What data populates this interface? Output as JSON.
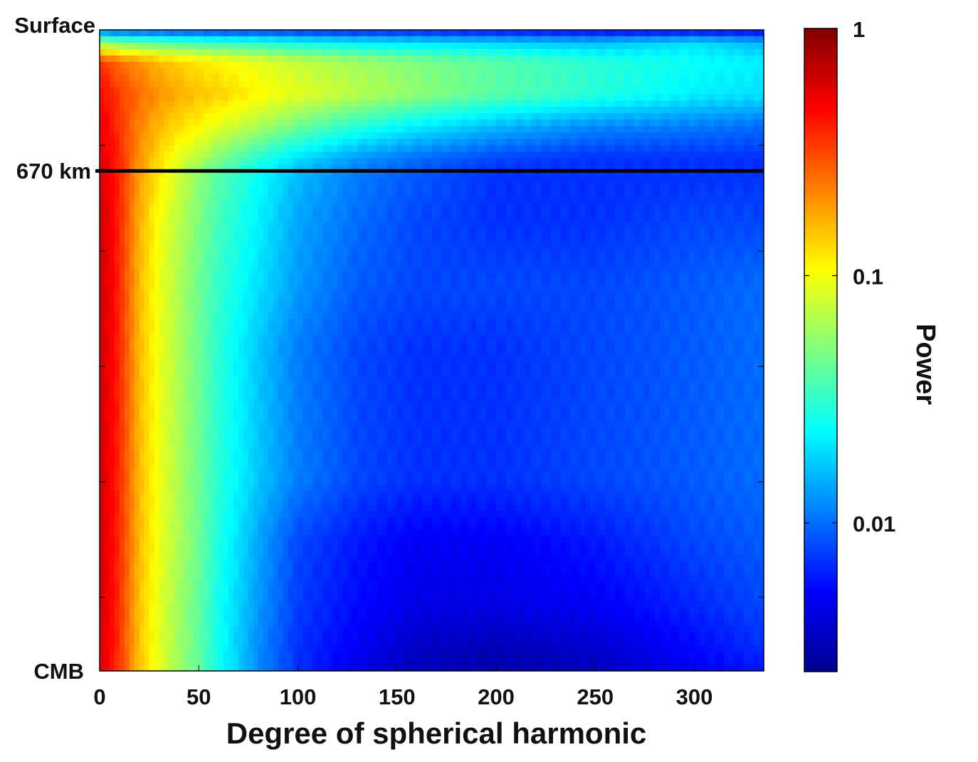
{
  "chart_data": {
    "type": "heatmap",
    "xlabel": "Degree of spherical harmonic",
    "x_ticks": [
      0,
      50,
      100,
      150,
      200,
      250,
      300
    ],
    "xlim": [
      0,
      335
    ],
    "y_labels": {
      "top": "Surface",
      "marker": "670 km",
      "bottom": "CMB"
    },
    "marker_line": {
      "label": "670 km",
      "depth_fraction_from_surface": 0.22
    },
    "colorbar": {
      "label": "Power",
      "scale": "log",
      "ticks": [
        {
          "value": 1,
          "label": "1"
        },
        {
          "value": 0.1,
          "label": "0.1"
        },
        {
          "value": 0.01,
          "label": "0.01"
        }
      ],
      "range": [
        0.0025,
        1
      ],
      "colormap": "jet"
    },
    "grid": false,
    "legend": "none",
    "depth_fractions": [
      0.0,
      0.02,
      0.05,
      0.1,
      0.15,
      0.2,
      0.22,
      0.3,
      0.4,
      0.5,
      0.6,
      0.7,
      0.8,
      0.9,
      0.96,
      1.0
    ],
    "degree_samples": [
      0,
      5,
      10,
      20,
      30,
      40,
      50,
      60,
      80,
      100,
      130,
      160,
      200,
      250,
      300,
      335
    ],
    "power": [
      [
        0.01,
        0.0085,
        0.0085,
        0.008,
        0.008,
        0.0075,
        0.0075,
        0.007,
        0.007,
        0.0065,
        0.006,
        0.006,
        0.0055,
        0.005,
        0.005,
        0.005
      ],
      [
        0.06,
        0.055,
        0.05,
        0.045,
        0.04,
        0.038,
        0.035,
        0.033,
        0.03,
        0.025,
        0.022,
        0.02,
        0.018,
        0.016,
        0.02,
        0.015
      ],
      [
        0.35,
        0.3,
        0.25,
        0.2,
        0.16,
        0.14,
        0.12,
        0.11,
        0.09,
        0.075,
        0.06,
        0.05,
        0.04,
        0.03,
        0.025,
        0.022
      ],
      [
        0.45,
        0.4,
        0.33,
        0.25,
        0.2,
        0.17,
        0.15,
        0.14,
        0.11,
        0.09,
        0.07,
        0.055,
        0.04,
        0.03,
        0.022,
        0.02
      ],
      [
        0.5,
        0.45,
        0.35,
        0.22,
        0.16,
        0.13,
        0.11,
        0.09,
        0.065,
        0.045,
        0.03,
        0.022,
        0.016,
        0.012,
        0.011,
        0.01
      ],
      [
        0.55,
        0.48,
        0.38,
        0.2,
        0.13,
        0.09,
        0.07,
        0.05,
        0.03,
        0.02,
        0.013,
        0.01,
        0.008,
        0.007,
        0.007,
        0.007
      ],
      [
        0.58,
        0.5,
        0.38,
        0.19,
        0.12,
        0.08,
        0.055,
        0.04,
        0.025,
        0.016,
        0.011,
        0.009,
        0.007,
        0.007,
        0.007,
        0.007
      ],
      [
        0.6,
        0.52,
        0.38,
        0.17,
        0.1,
        0.07,
        0.05,
        0.035,
        0.022,
        0.014,
        0.01,
        0.008,
        0.007,
        0.007,
        0.008,
        0.008
      ],
      [
        0.62,
        0.52,
        0.38,
        0.16,
        0.095,
        0.065,
        0.045,
        0.032,
        0.02,
        0.013,
        0.009,
        0.008,
        0.008,
        0.008,
        0.009,
        0.01
      ],
      [
        0.62,
        0.52,
        0.38,
        0.16,
        0.095,
        0.065,
        0.045,
        0.03,
        0.017,
        0.011,
        0.008,
        0.007,
        0.007,
        0.008,
        0.009,
        0.01
      ],
      [
        0.62,
        0.5,
        0.38,
        0.16,
        0.095,
        0.065,
        0.045,
        0.03,
        0.017,
        0.011,
        0.008,
        0.007,
        0.007,
        0.008,
        0.009,
        0.01
      ],
      [
        0.6,
        0.5,
        0.37,
        0.16,
        0.095,
        0.065,
        0.045,
        0.03,
        0.017,
        0.011,
        0.008,
        0.007,
        0.007,
        0.008,
        0.009,
        0.01
      ],
      [
        0.6,
        0.5,
        0.37,
        0.16,
        0.095,
        0.065,
        0.045,
        0.028,
        0.014,
        0.008,
        0.006,
        0.005,
        0.005,
        0.006,
        0.008,
        0.009
      ],
      [
        0.6,
        0.5,
        0.36,
        0.15,
        0.09,
        0.06,
        0.042,
        0.026,
        0.013,
        0.0075,
        0.0055,
        0.0045,
        0.0045,
        0.005,
        0.0065,
        0.008
      ],
      [
        0.58,
        0.48,
        0.35,
        0.15,
        0.09,
        0.06,
        0.042,
        0.026,
        0.012,
        0.007,
        0.005,
        0.0038,
        0.0035,
        0.004,
        0.0055,
        0.007
      ],
      [
        0.55,
        0.46,
        0.34,
        0.15,
        0.09,
        0.06,
        0.042,
        0.026,
        0.012,
        0.007,
        0.0045,
        0.0035,
        0.0032,
        0.0035,
        0.005,
        0.006
      ]
    ]
  }
}
